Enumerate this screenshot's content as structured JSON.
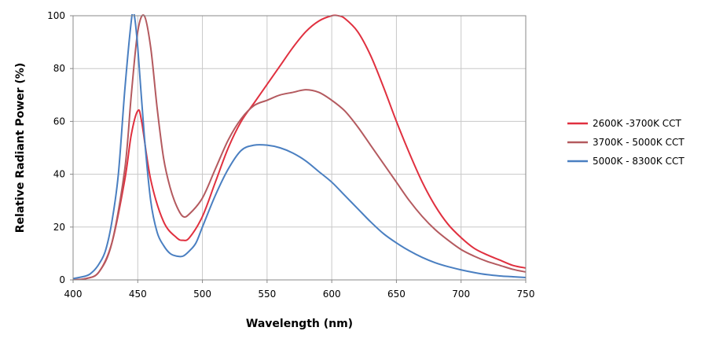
{
  "chart_data": {
    "type": "line",
    "title": "",
    "xlabel": "Wavelength (nm)",
    "ylabel": "Relative Radiant Power (%)",
    "xlim": [
      400,
      750
    ],
    "ylim": [
      0,
      100
    ],
    "x_ticks": [
      "400",
      "450",
      "500",
      "550",
      "600",
      "650",
      "700",
      "750"
    ],
    "y_ticks": [
      "0",
      "20",
      "40",
      "60",
      "80",
      "100"
    ],
    "grid": true,
    "legend_position": "right",
    "series": [
      {
        "name": "2600K -3700K CCT",
        "color": "#e0303f",
        "points": [
          [
            400,
            0
          ],
          [
            410,
            0.5
          ],
          [
            420,
            3
          ],
          [
            430,
            14
          ],
          [
            440,
            38
          ],
          [
            445,
            55
          ],
          [
            450,
            64
          ],
          [
            453,
            60
          ],
          [
            460,
            38
          ],
          [
            470,
            22
          ],
          [
            480,
            16
          ],
          [
            485,
            15
          ],
          [
            490,
            16
          ],
          [
            500,
            24
          ],
          [
            510,
            37
          ],
          [
            520,
            50
          ],
          [
            530,
            60
          ],
          [
            540,
            67
          ],
          [
            550,
            74
          ],
          [
            560,
            81
          ],
          [
            570,
            88
          ],
          [
            580,
            94
          ],
          [
            590,
            98
          ],
          [
            600,
            100
          ],
          [
            605,
            100
          ],
          [
            610,
            99
          ],
          [
            620,
            94
          ],
          [
            630,
            85
          ],
          [
            640,
            73
          ],
          [
            650,
            60
          ],
          [
            660,
            48
          ],
          [
            670,
            37
          ],
          [
            680,
            28
          ],
          [
            690,
            21
          ],
          [
            700,
            16
          ],
          [
            710,
            12
          ],
          [
            720,
            9.5
          ],
          [
            730,
            7.5
          ],
          [
            740,
            5.5
          ],
          [
            750,
            4.5
          ]
        ]
      },
      {
        "name": "3700K - 5000K CCT",
        "color": "#b45a5f",
        "points": [
          [
            400,
            0
          ],
          [
            410,
            0.5
          ],
          [
            420,
            3
          ],
          [
            430,
            14
          ],
          [
            440,
            42
          ],
          [
            445,
            70
          ],
          [
            450,
            94
          ],
          [
            455,
            100
          ],
          [
            460,
            88
          ],
          [
            465,
            65
          ],
          [
            470,
            46
          ],
          [
            475,
            35
          ],
          [
            480,
            28
          ],
          [
            485,
            24
          ],
          [
            490,
            25
          ],
          [
            500,
            31
          ],
          [
            510,
            42
          ],
          [
            520,
            53
          ],
          [
            530,
            61
          ],
          [
            540,
            66
          ],
          [
            550,
            68
          ],
          [
            560,
            70
          ],
          [
            570,
            71
          ],
          [
            580,
            72
          ],
          [
            590,
            71
          ],
          [
            600,
            68
          ],
          [
            610,
            64
          ],
          [
            620,
            58
          ],
          [
            630,
            51
          ],
          [
            640,
            44
          ],
          [
            650,
            37
          ],
          [
            660,
            30
          ],
          [
            670,
            24
          ],
          [
            680,
            19
          ],
          [
            690,
            15
          ],
          [
            700,
            11.5
          ],
          [
            710,
            9
          ],
          [
            720,
            7
          ],
          [
            730,
            5.5
          ],
          [
            740,
            4
          ],
          [
            750,
            3
          ]
        ]
      },
      {
        "name": "5000K - 8300K CCT",
        "color": "#4a7fc1",
        "points": [
          [
            400,
            0.5
          ],
          [
            410,
            1.5
          ],
          [
            415,
            3
          ],
          [
            420,
            6
          ],
          [
            425,
            11
          ],
          [
            430,
            22
          ],
          [
            435,
            40
          ],
          [
            440,
            72
          ],
          [
            445,
            98
          ],
          [
            447,
            101
          ],
          [
            450,
            88
          ],
          [
            455,
            55
          ],
          [
            460,
            30
          ],
          [
            465,
            18
          ],
          [
            470,
            13
          ],
          [
            475,
            10
          ],
          [
            480,
            9
          ],
          [
            485,
            9
          ],
          [
            490,
            11
          ],
          [
            495,
            14
          ],
          [
            500,
            20
          ],
          [
            510,
            32
          ],
          [
            520,
            42
          ],
          [
            530,
            49
          ],
          [
            540,
            51
          ],
          [
            550,
            51
          ],
          [
            560,
            50
          ],
          [
            570,
            48
          ],
          [
            580,
            45
          ],
          [
            590,
            41
          ],
          [
            600,
            37
          ],
          [
            610,
            32
          ],
          [
            620,
            27
          ],
          [
            630,
            22
          ],
          [
            640,
            17.5
          ],
          [
            650,
            14
          ],
          [
            660,
            11
          ],
          [
            670,
            8.5
          ],
          [
            680,
            6.5
          ],
          [
            690,
            5
          ],
          [
            700,
            3.8
          ],
          [
            710,
            2.8
          ],
          [
            720,
            2
          ],
          [
            730,
            1.5
          ],
          [
            740,
            1.2
          ],
          [
            750,
            0.9
          ]
        ]
      }
    ]
  }
}
